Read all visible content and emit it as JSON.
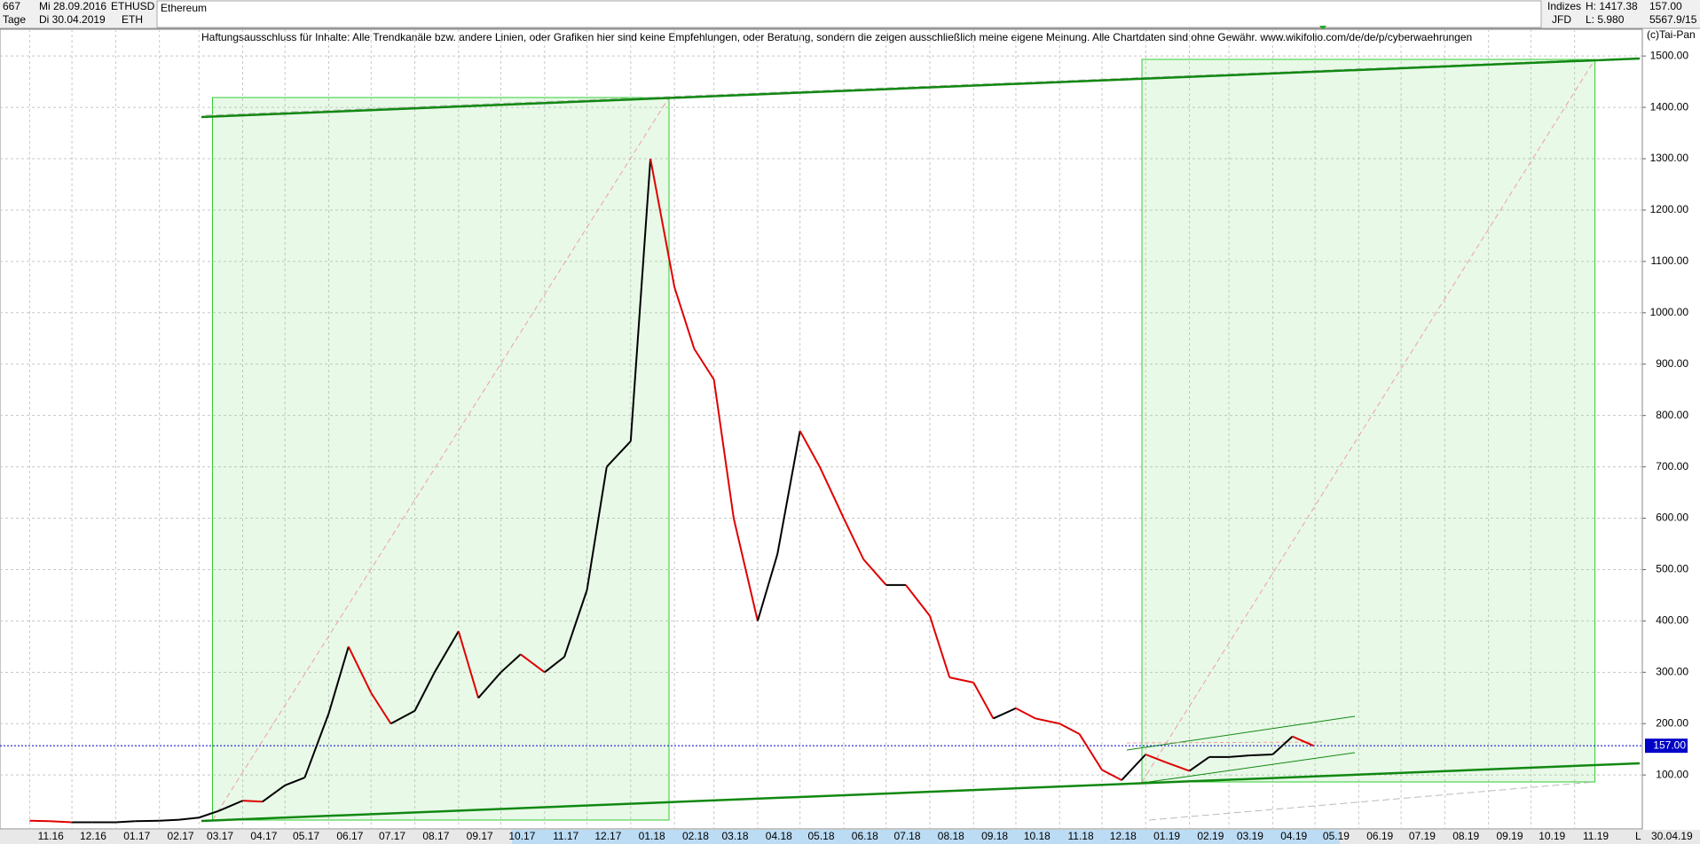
{
  "header": {
    "count": "667",
    "start_date": "Mi 28.09.2016",
    "symbol": "ETHUSD",
    "name": "Ethereum",
    "period": "Tage",
    "end_date": "Di 30.04.2019",
    "short_name": "ETH",
    "group": "Indizes",
    "high": "H: 1417.38",
    "last": "157.00",
    "source": "JFD",
    "low": "L: 5.980",
    "extra": "5567.9/15",
    "disclaimer": "Haftungsausschluss für Inhalte: Alle Trendkanäle bzw. andere Linien, oder Grafiken hier sind keine Empfehlungen, oder Beratung, sondern die zeigen ausschließlich meine eigene Meinung. Alle Chartdaten sind ohne Gewähr.  www.wikifolio.com/de/de/p/cyberwaehrungen",
    "copyright": "(c)Tai-Pan",
    "scale_mode": "L"
  },
  "chart_data": {
    "type": "line",
    "up_color": "#000000",
    "down_color": "#e00000",
    "x": [
      "01.11.16",
      "15.11.16",
      "01.12.16",
      "15.12.16",
      "01.01.17",
      "15.01.17",
      "01.02.17",
      "15.02.17",
      "01.03.17",
      "15.03.17",
      "01.04.17",
      "15.04.17",
      "01.05.17",
      "15.05.17",
      "01.06.17",
      "15.06.17",
      "01.07.17",
      "15.07.17",
      "01.08.17",
      "15.08.17",
      "01.09.17",
      "15.09.17",
      "01.10.17",
      "15.10.17",
      "01.11.17",
      "15.11.17",
      "01.12.17",
      "15.12.17",
      "01.01.18",
      "15.01.18",
      "01.02.18",
      "15.02.18",
      "01.03.18",
      "15.03.18",
      "01.04.18",
      "15.04.18",
      "01.05.18",
      "15.05.18",
      "01.06.18",
      "15.06.18",
      "01.07.18",
      "15.07.18",
      "01.08.18",
      "15.08.18",
      "01.09.18",
      "15.09.18",
      "01.10.18",
      "15.10.18",
      "01.11.18",
      "15.11.18",
      "01.12.18",
      "15.12.18",
      "01.01.19",
      "15.01.19",
      "01.02.19",
      "15.02.19",
      "01.03.19",
      "15.03.19",
      "01.04.19",
      "15.04.19",
      "30.04.19"
    ],
    "values": [
      11,
      10,
      8,
      8,
      8,
      10,
      11,
      13,
      17,
      30,
      50,
      48,
      80,
      95,
      220,
      350,
      260,
      200,
      225,
      300,
      380,
      250,
      300,
      335,
      300,
      330,
      460,
      700,
      750,
      1300,
      1050,
      930,
      870,
      600,
      400,
      530,
      770,
      700,
      600,
      520,
      470,
      470,
      410,
      290,
      280,
      210,
      230,
      210,
      200,
      180,
      110,
      90,
      140,
      125,
      108,
      135,
      135,
      138,
      140,
      175,
      157
    ],
    "xlim": [
      "11.10.16",
      "19.12.19"
    ],
    "ylim": [
      -5,
      1521
    ],
    "yticks": [
      {
        "value": 100,
        "label": "100.00"
      },
      {
        "value": 200,
        "label": "200.00"
      },
      {
        "value": 300,
        "label": "300.00"
      },
      {
        "value": 400,
        "label": "400.00"
      },
      {
        "value": 500,
        "label": "500.00"
      },
      {
        "value": 600,
        "label": "600.00"
      },
      {
        "value": 700,
        "label": "700.00"
      },
      {
        "value": 800,
        "label": "800.00"
      },
      {
        "value": 900,
        "label": "900.00"
      },
      {
        "value": 1000,
        "label": "1000.00"
      },
      {
        "value": 1100,
        "label": "1100.00"
      },
      {
        "value": 1200,
        "label": "1200.00"
      },
      {
        "value": 1300,
        "label": "1300.00"
      },
      {
        "value": 1400,
        "label": "1400.00"
      },
      {
        "value": 1500,
        "label": "1500.00"
      }
    ],
    "xticks": [
      {
        "value": "01.11.16",
        "label": "11.16"
      },
      {
        "value": "01.12.16",
        "label": "12.16"
      },
      {
        "value": "01.01.17",
        "label": "01.17"
      },
      {
        "value": "01.02.17",
        "label": "02.17"
      },
      {
        "value": "01.03.17",
        "label": "03.17"
      },
      {
        "value": "01.04.17",
        "label": "04.17"
      },
      {
        "value": "01.05.17",
        "label": "05.17"
      },
      {
        "value": "01.06.17",
        "label": "06.17"
      },
      {
        "value": "01.07.17",
        "label": "07.17"
      },
      {
        "value": "01.08.17",
        "label": "08.17"
      },
      {
        "value": "01.09.17",
        "label": "09.17"
      },
      {
        "value": "01.10.17",
        "label": "10.17"
      },
      {
        "value": "01.11.17",
        "label": "11.17"
      },
      {
        "value": "01.12.17",
        "label": "12.17"
      },
      {
        "value": "01.01.18",
        "label": "01.18"
      },
      {
        "value": "01.02.18",
        "label": "02.18"
      },
      {
        "value": "01.03.18",
        "label": "03.18"
      },
      {
        "value": "01.04.18",
        "label": "04.18"
      },
      {
        "value": "01.05.18",
        "label": "05.18"
      },
      {
        "value": "01.06.18",
        "label": "06.18"
      },
      {
        "value": "01.07.18",
        "label": "07.18"
      },
      {
        "value": "01.08.18",
        "label": "08.18"
      },
      {
        "value": "01.09.18",
        "label": "09.18"
      },
      {
        "value": "01.10.18",
        "label": "10.18"
      },
      {
        "value": "01.11.18",
        "label": "11.18"
      },
      {
        "value": "01.12.18",
        "label": "12.18"
      },
      {
        "value": "01.01.19",
        "label": "01.19"
      },
      {
        "value": "01.02.19",
        "label": "02.19"
      },
      {
        "value": "01.03.19",
        "label": "03.19"
      },
      {
        "value": "01.04.19",
        "label": "04.19"
      },
      {
        "value": "01.05.19",
        "label": "05.19"
      },
      {
        "value": "01.06.19",
        "label": "06.19"
      },
      {
        "value": "01.07.19",
        "label": "07.19"
      },
      {
        "value": "01.08.19",
        "label": "08.19"
      },
      {
        "value": "01.09.19",
        "label": "09.19"
      },
      {
        "value": "01.10.19",
        "label": "10.19"
      },
      {
        "value": "01.11.19",
        "label": "11.19"
      }
    ],
    "last_price": {
      "value": 157,
      "label": "157.00"
    },
    "current_date_label": "30.04.19",
    "grid": true
  }
}
